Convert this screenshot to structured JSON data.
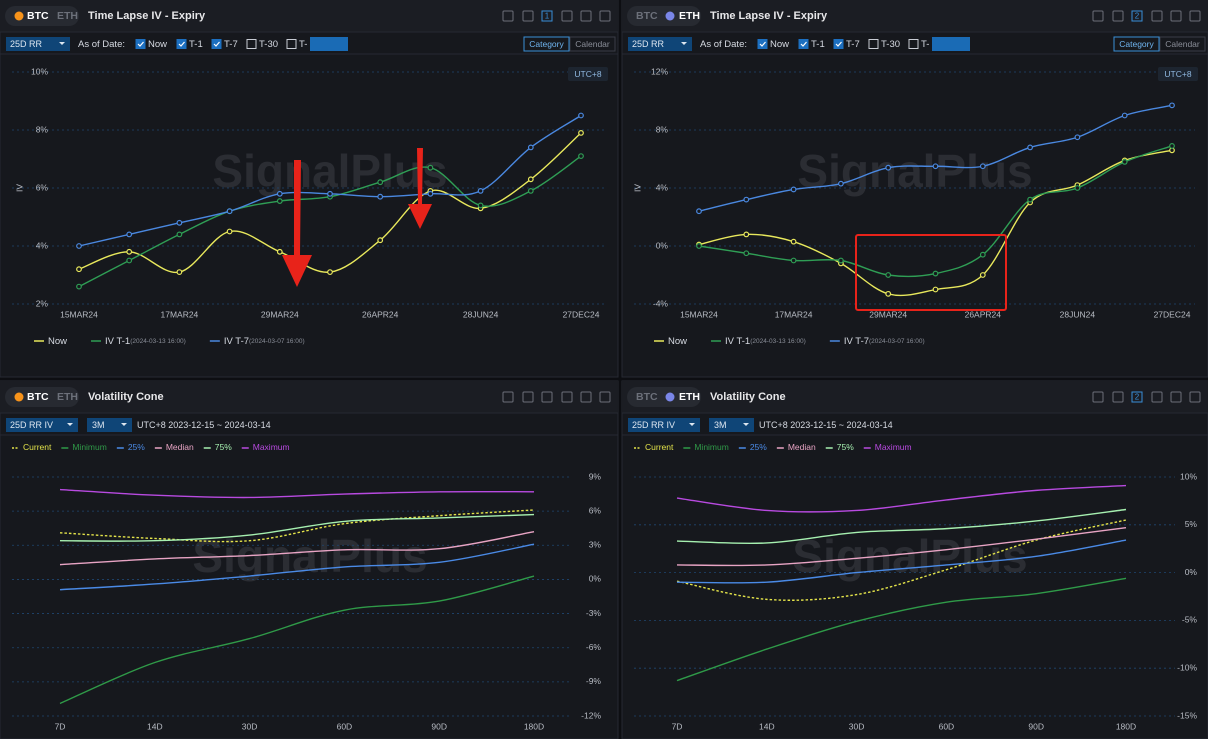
{
  "panels": [
    {
      "coins": [
        "BTC",
        "ETH"
      ],
      "active_coin": 0,
      "badge": "1",
      "selector": "25D RR",
      "as_of_label": "As of Date:",
      "options": [
        {
          "label": "Now",
          "checked": true
        },
        {
          "label": "T-1",
          "checked": true
        },
        {
          "label": "T-7",
          "checked": true
        },
        {
          "label": "T-30",
          "checked": false
        },
        {
          "label": "T-",
          "checked": false
        }
      ],
      "views": [
        "Category",
        "Calendar"
      ],
      "active_view": 0
    },
    {
      "coins": [
        "BTC",
        "ETH"
      ],
      "active_coin": 1,
      "badge": "2",
      "selector": "25D RR",
      "as_of_label": "As of Date:",
      "options": [
        {
          "label": "Now",
          "checked": true
        },
        {
          "label": "T-1",
          "checked": true
        },
        {
          "label": "T-7",
          "checked": true
        },
        {
          "label": "T-30",
          "checked": false
        },
        {
          "label": "T-",
          "checked": false
        }
      ],
      "views": [
        "Category",
        "Calendar"
      ],
      "active_view": 0
    },
    {
      "coins": [
        "BTC",
        "ETH"
      ],
      "active_coin": 0,
      "selector": "25D RR IV",
      "period": "3M",
      "range": "UTC+8 2023-12-15 ~ 2024-03-14"
    },
    {
      "coins": [
        "BTC",
        "ETH"
      ],
      "active_coin": 1,
      "badge": "2",
      "selector": "25D RR IV",
      "period": "3M",
      "range": "UTC+8 2023-12-15 ~ 2024-03-14"
    }
  ],
  "chart_data": [
    {
      "type": "line",
      "title": "Time Lapse IV - Expiry",
      "timezone": "UTC+8",
      "watermark": "SignalPlus",
      "y_label": "IV",
      "markers": true,
      "grid": true,
      "categories": [
        "15MAR24",
        null,
        "17MAR24",
        null,
        "29MAR24",
        null,
        "26APR24",
        null,
        "28JUN24",
        null,
        "27DEC24"
      ],
      "series": [
        {
          "name": "Now",
          "color": "#e8e85c",
          "values": [
            3.2,
            3.8,
            3.1,
            4.5,
            3.8,
            3.1,
            4.2,
            5.9,
            5.3,
            6.3,
            7.9
          ]
        },
        {
          "name": "IV T-1",
          "timestamp": "(2024-03-13 16:00)",
          "color": "#2f9e55",
          "values": [
            2.6,
            3.5,
            4.4,
            5.2,
            5.55,
            5.7,
            6.2,
            6.7,
            5.4,
            5.9,
            7.1
          ]
        },
        {
          "name": "IV T-7",
          "timestamp": "(2024-03-07 16:00)",
          "color": "#4a88e0",
          "values": [
            4.0,
            4.4,
            4.8,
            5.2,
            5.8,
            5.8,
            5.7,
            5.8,
            5.9,
            7.4,
            8.5
          ]
        }
      ],
      "ylim": [
        2,
        10
      ],
      "yticks": [
        {
          "value": 2,
          "label": "2%"
        },
        {
          "value": 4,
          "label": "4%"
        },
        {
          "value": 6,
          "label": "6%"
        },
        {
          "value": 8,
          "label": "8%"
        },
        {
          "value": 10,
          "label": "10%"
        }
      ]
    },
    {
      "type": "line",
      "title": "Time Lapse IV - Expiry",
      "timezone": "UTC+8",
      "watermark": "SignalPlus",
      "y_label": "IV",
      "markers": true,
      "grid": true,
      "categories": [
        "15MAR24",
        null,
        "17MAR24",
        null,
        "29MAR24",
        null,
        "26APR24",
        null,
        "28JUN24",
        null,
        "27DEC24"
      ],
      "series": [
        {
          "name": "Now",
          "color": "#e8e85c",
          "values": [
            0.1,
            0.8,
            0.3,
            -1.2,
            -3.3,
            -3.0,
            -2.0,
            3.0,
            4.2,
            5.9,
            6.6
          ]
        },
        {
          "name": "IV T-1",
          "timestamp": "(2024-03-13 16:00)",
          "color": "#2f9e55",
          "values": [
            0.0,
            -0.5,
            -1.0,
            -1.0,
            -2.0,
            -1.9,
            -0.6,
            3.2,
            4.0,
            5.8,
            6.9
          ]
        },
        {
          "name": "IV T-7",
          "timestamp": "(2024-03-07 16:00)",
          "color": "#4a88e0",
          "values": [
            2.4,
            3.2,
            3.9,
            4.3,
            5.4,
            5.5,
            5.5,
            6.8,
            7.5,
            9.0,
            9.7
          ]
        }
      ],
      "ylim": [
        -4,
        12
      ],
      "yticks": [
        {
          "value": -4,
          "label": "-4%"
        },
        {
          "value": 0,
          "label": "0%"
        },
        {
          "value": 4,
          "label": "4%"
        },
        {
          "value": 8,
          "label": "8%"
        },
        {
          "value": 12,
          "label": "12%"
        }
      ]
    },
    {
      "type": "line",
      "title": "Volatility Cone",
      "watermark": "SignalPlus",
      "markers": false,
      "grid": true,
      "categories": [
        "7D",
        "14D",
        "30D",
        "60D",
        "90D",
        "180D"
      ],
      "series": [
        {
          "name": "Current",
          "color": "#e4e44a",
          "dashed": true,
          "values": [
            4.1,
            3.6,
            3.4,
            4.9,
            5.6,
            6.1
          ]
        },
        {
          "name": "Minimum",
          "color": "#2f9a48",
          "values": [
            -10.9,
            -7.3,
            -5.2,
            -2.7,
            -1.9,
            0.3
          ]
        },
        {
          "name": "25%",
          "color": "#4a8ae6",
          "values": [
            -0.9,
            -0.4,
            0.3,
            1.1,
            1.5,
            3.1
          ]
        },
        {
          "name": "Median",
          "color": "#e8a4c4",
          "values": [
            1.3,
            1.8,
            2.1,
            2.6,
            2.7,
            4.2
          ]
        },
        {
          "name": "75%",
          "color": "#a6f0b0",
          "values": [
            3.4,
            3.4,
            3.9,
            5.1,
            5.4,
            5.7
          ]
        },
        {
          "name": "Maximum",
          "color": "#b84ae0",
          "values": [
            7.9,
            7.4,
            7.2,
            7.5,
            7.7,
            7.7
          ]
        }
      ],
      "ylim": [
        -12,
        9
      ],
      "yticks": [
        {
          "value": -12,
          "label": "-12%"
        },
        {
          "value": -9,
          "label": "-9%"
        },
        {
          "value": -6,
          "label": "-6%"
        },
        {
          "value": -3,
          "label": "-3%"
        },
        {
          "value": 0,
          "label": "0%"
        },
        {
          "value": 3,
          "label": "3%"
        },
        {
          "value": 6,
          "label": "6%"
        },
        {
          "value": 9,
          "label": "9%"
        }
      ]
    },
    {
      "type": "line",
      "title": "Volatility Cone",
      "watermark": "SignalPlus",
      "markers": false,
      "grid": true,
      "categories": [
        "7D",
        "14D",
        "30D",
        "60D",
        "90D",
        "180D"
      ],
      "series": [
        {
          "name": "Current",
          "color": "#e4e44a",
          "dashed": true,
          "values": [
            -0.9,
            -2.8,
            -2.3,
            0.3,
            3.4,
            5.5
          ]
        },
        {
          "name": "Minimum",
          "color": "#2f9a48",
          "values": [
            -11.3,
            -8.0,
            -5.1,
            -3.1,
            -2.2,
            -0.6
          ]
        },
        {
          "name": "25%",
          "color": "#4a8ae6",
          "values": [
            -1.0,
            -1.0,
            0.0,
            0.8,
            1.7,
            3.4
          ]
        },
        {
          "name": "Median",
          "color": "#e8a4c4",
          "values": [
            0.8,
            0.8,
            1.5,
            2.4,
            3.5,
            4.7
          ]
        },
        {
          "name": "75%",
          "color": "#a6f0b0",
          "values": [
            3.3,
            3.1,
            4.2,
            4.6,
            5.4,
            6.6
          ]
        },
        {
          "name": "Maximum",
          "color": "#b84ae0",
          "values": [
            7.8,
            6.5,
            6.5,
            7.6,
            8.6,
            9.1
          ]
        }
      ],
      "ylim": [
        -15,
        10
      ],
      "yticks": [
        {
          "value": -15,
          "label": "-15%"
        },
        {
          "value": -10,
          "label": "-10%"
        },
        {
          "value": -5,
          "label": "-5%"
        },
        {
          "value": 0,
          "label": "0%"
        },
        {
          "value": 5,
          "label": "5%"
        },
        {
          "value": 10,
          "label": "10%"
        }
      ]
    }
  ]
}
